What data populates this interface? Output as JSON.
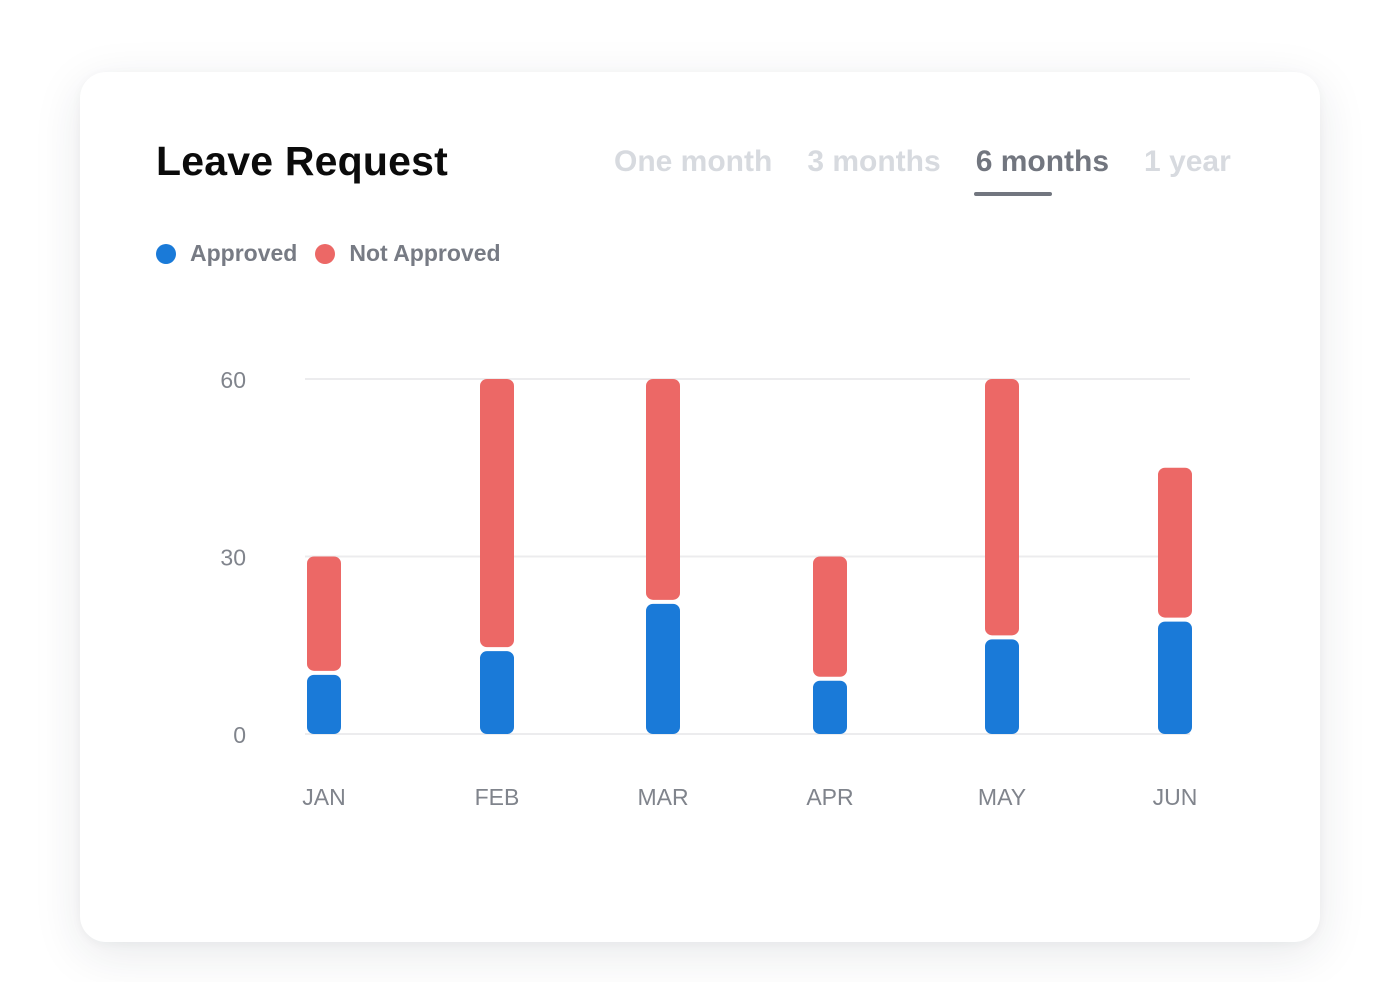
{
  "card": {
    "title": "Leave Request"
  },
  "tabs": [
    {
      "label": "One month",
      "active": false
    },
    {
      "label": "3 months",
      "active": false
    },
    {
      "label": "6 months",
      "active": true
    },
    {
      "label": "1 year",
      "active": false
    }
  ],
  "colors": {
    "approved": "#1a7ad8",
    "not_approved": "#ec6866",
    "grid": "#ececee",
    "tick_text": "#80848c",
    "active_tab": "#72767f",
    "inactive_tab": "#d7dadf"
  },
  "chart_data": {
    "type": "bar",
    "stacked": true,
    "categories": [
      "JAN",
      "FEB",
      "MAR",
      "APR",
      "MAY",
      "JUN"
    ],
    "series": [
      {
        "name": "Approved",
        "values": [
          10,
          14,
          22,
          9,
          16,
          19
        ]
      },
      {
        "name": "Not Approved",
        "values": [
          20,
          46,
          38,
          21,
          44,
          26
        ]
      }
    ],
    "yticks": [
      0,
      30,
      60
    ],
    "ylim": [
      0,
      60
    ],
    "grid": true,
    "legend_position": "top-left"
  }
}
